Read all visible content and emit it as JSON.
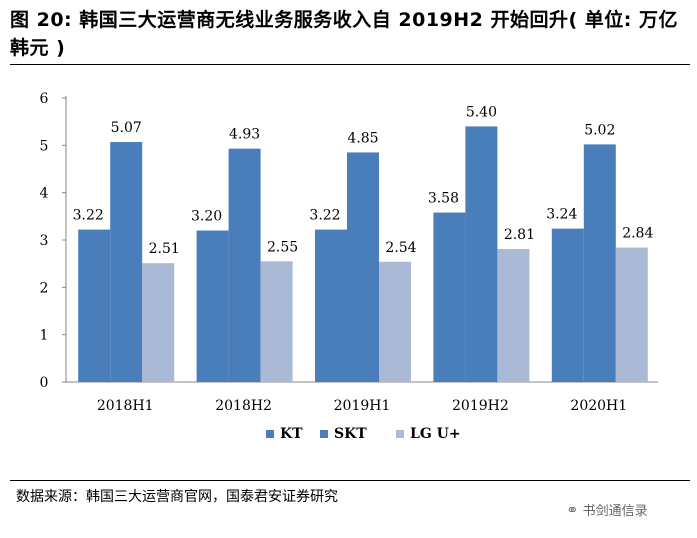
{
  "figure": {
    "title": "图 20: 韩国三大运营商无线业务服务收入自 2019H2 开始回升( 单位: 万亿韩元 )",
    "source": "数据来源：韩国三大运营商官网，国泰君安证券研究",
    "watermark": "书剑通信录"
  },
  "chart_data": {
    "type": "bar",
    "categories": [
      "2018H1",
      "2018H2",
      "2019H1",
      "2019H2",
      "2020H1"
    ],
    "series": [
      {
        "name": "KT",
        "values": [
          3.22,
          3.2,
          3.22,
          3.58,
          3.24
        ],
        "color": "#4a7ebb"
      },
      {
        "name": "SKT",
        "values": [
          5.07,
          4.93,
          4.85,
          5.4,
          5.02
        ],
        "color": "#4a7ebb"
      },
      {
        "name": "LG U+",
        "values": [
          2.51,
          2.55,
          2.54,
          2.81,
          2.84
        ],
        "color": "#a9b9d6"
      }
    ],
    "value_labels": [
      [
        "3.22",
        "3.20",
        "3.22",
        "3.58",
        "3.24"
      ],
      [
        "5.07",
        "4.93",
        "4.85",
        "5.40",
        "5.02"
      ],
      [
        "2.51",
        "2.55",
        "2.54",
        "2.81",
        "2.84"
      ]
    ],
    "ylim": [
      0,
      6
    ],
    "yticks": [
      "0",
      "1",
      "2",
      "3",
      "4",
      "5",
      "6"
    ],
    "grid": false,
    "legend": "bottom"
  }
}
